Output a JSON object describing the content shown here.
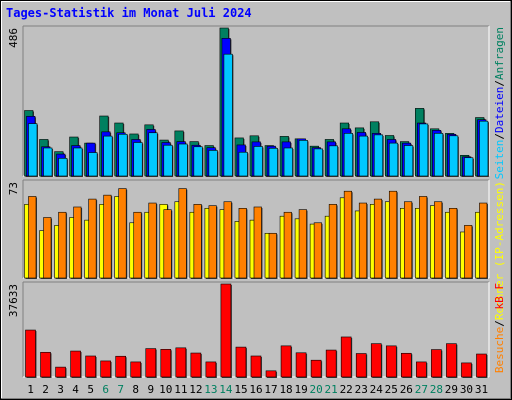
{
  "title": "Tages-Statistik im Monat Juli 2024",
  "colors": {
    "background": "#c0c0c0",
    "title": "#0000ff",
    "weekday": "#000000",
    "weekend": "#008060",
    "anfragen": "#008060",
    "dateien": "#0000ff",
    "seiten": "#00c8ff",
    "rechner": "#ffff00",
    "besuche": "#ff8000",
    "kb": "#ff0000"
  },
  "chart_data": [
    {
      "type": "bar",
      "panel": "top",
      "ymax_label": "486",
      "ylim": [
        0,
        486
      ],
      "legend": [
        {
          "name": "Anfragen",
          "color_key": "anfragen"
        },
        {
          "name": "Dateien",
          "color_key": "dateien"
        },
        {
          "name": "Seiten",
          "color_key": "seiten"
        }
      ],
      "legend_separator": "/",
      "categories": [
        "1",
        "2",
        "3",
        "4",
        "5",
        "6",
        "7",
        "8",
        "9",
        "10",
        "11",
        "12",
        "13",
        "14",
        "15",
        "16",
        "17",
        "18",
        "19",
        "20",
        "21",
        "22",
        "23",
        "24",
        "25",
        "26",
        "27",
        "28",
        "29",
        "30",
        "31"
      ],
      "series": [
        {
          "name": "Anfragen",
          "values": [
            215,
            120,
            80,
            128,
            108,
            197,
            174,
            138,
            168,
            118,
            148,
            113,
            100,
            486,
            125,
            132,
            100,
            130,
            122,
            98,
            120,
            174,
            158,
            178,
            133,
            113,
            222,
            155,
            140,
            68,
            192
          ]
        },
        {
          "name": "Dateien",
          "values": [
            196,
            96,
            72,
            100,
            108,
            145,
            142,
            120,
            153,
            110,
            113,
            101,
            93,
            452,
            102,
            112,
            98,
            112,
            122,
            93,
            112,
            155,
            143,
            140,
            120,
            108,
            174,
            150,
            137,
            63,
            185
          ]
        },
        {
          "name": "Seiten",
          "values": [
            172,
            92,
            58,
            92,
            77,
            131,
            137,
            110,
            142,
            101,
            105,
            96,
            84,
            400,
            78,
            97,
            91,
            92,
            117,
            89,
            99,
            140,
            131,
            135,
            108,
            100,
            171,
            140,
            132,
            60,
            180
          ]
        }
      ]
    },
    {
      "type": "bar",
      "panel": "middle",
      "ymax_label": "73",
      "ylim": [
        0,
        73
      ],
      "legend": [
        {
          "name": "Rechner (IP-Adressen)",
          "color_key": "rechner"
        },
        {
          "name": "Besuche",
          "color_key": "besuche"
        }
      ],
      "legend_separator": "/",
      "categories": [
        "1",
        "2",
        "3",
        "4",
        "5",
        "6",
        "7",
        "8",
        "9",
        "10",
        "11",
        "12",
        "13",
        "14",
        "15",
        "16",
        "17",
        "18",
        "19",
        "20",
        "21",
        "22",
        "23",
        "24",
        "25",
        "26",
        "27",
        "28",
        "29",
        "30",
        "31"
      ],
      "series": [
        {
          "name": "Rechner (IP-Adressen)",
          "values": [
            56,
            36,
            40,
            46,
            44,
            56,
            62,
            42,
            50,
            56,
            58,
            50,
            53,
            52,
            43,
            44,
            34,
            47,
            45,
            41,
            47,
            61,
            51,
            56,
            58,
            53,
            53,
            55,
            50,
            35,
            50
          ]
        },
        {
          "name": "Besuche",
          "values": [
            62,
            46,
            50,
            54,
            60,
            63,
            68,
            50,
            57,
            52,
            68,
            56,
            55,
            58,
            53,
            54,
            34,
            50,
            52,
            42,
            56,
            66,
            57,
            60,
            66,
            58,
            62,
            58,
            53,
            40,
            57
          ]
        }
      ]
    },
    {
      "type": "bar",
      "panel": "bottom",
      "ymax_label": "37633",
      "ylim": [
        0,
        37633
      ],
      "legend": [
        {
          "name": "kB F",
          "color_key": "kb"
        }
      ],
      "categories": [
        "1",
        "2",
        "3",
        "4",
        "5",
        "6",
        "7",
        "8",
        "9",
        "10",
        "11",
        "12",
        "13",
        "14",
        "15",
        "16",
        "17",
        "18",
        "19",
        "20",
        "21",
        "22",
        "23",
        "24",
        "25",
        "26",
        "27",
        "28",
        "29",
        "30",
        "31"
      ],
      "series": [
        {
          "name": "kB F",
          "values": [
            19000,
            10000,
            4000,
            10500,
            8500,
            6500,
            8400,
            6100,
            11500,
            11200,
            11800,
            9700,
            6100,
            37633,
            12100,
            8500,
            2500,
            12600,
            9800,
            6800,
            10900,
            16200,
            9500,
            13500,
            12600,
            9600,
            6100,
            11100,
            13500,
            5700,
            9300
          ]
        }
      ]
    }
  ],
  "days": [
    {
      "label": "1",
      "weekend": false
    },
    {
      "label": "2",
      "weekend": false
    },
    {
      "label": "3",
      "weekend": false
    },
    {
      "label": "4",
      "weekend": false
    },
    {
      "label": "5",
      "weekend": false
    },
    {
      "label": "6",
      "weekend": true
    },
    {
      "label": "7",
      "weekend": true
    },
    {
      "label": "8",
      "weekend": false
    },
    {
      "label": "9",
      "weekend": false
    },
    {
      "label": "10",
      "weekend": false
    },
    {
      "label": "11",
      "weekend": false
    },
    {
      "label": "12",
      "weekend": false
    },
    {
      "label": "13",
      "weekend": true
    },
    {
      "label": "14",
      "weekend": true
    },
    {
      "label": "15",
      "weekend": false
    },
    {
      "label": "16",
      "weekend": false
    },
    {
      "label": "17",
      "weekend": false
    },
    {
      "label": "18",
      "weekend": false
    },
    {
      "label": "19",
      "weekend": false
    },
    {
      "label": "20",
      "weekend": true
    },
    {
      "label": "21",
      "weekend": true
    },
    {
      "label": "22",
      "weekend": false
    },
    {
      "label": "23",
      "weekend": false
    },
    {
      "label": "24",
      "weekend": false
    },
    {
      "label": "25",
      "weekend": false
    },
    {
      "label": "26",
      "weekend": false
    },
    {
      "label": "27",
      "weekend": true
    },
    {
      "label": "28",
      "weekend": true
    },
    {
      "label": "29",
      "weekend": false
    },
    {
      "label": "30",
      "weekend": false
    },
    {
      "label": "31",
      "weekend": false
    }
  ]
}
